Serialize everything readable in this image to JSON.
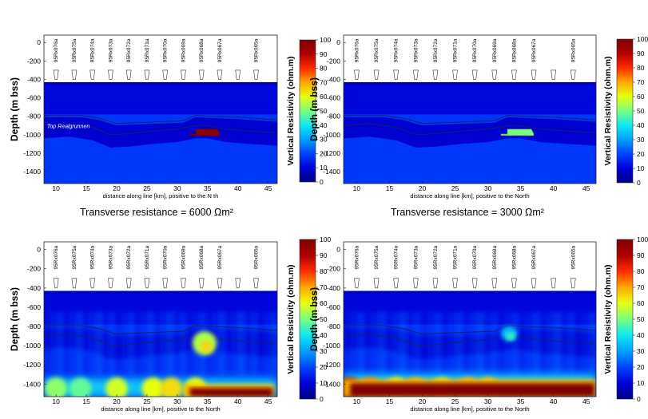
{
  "colors": {
    "background": "#ffffff",
    "air": "#ffffff",
    "rock": "#3a5fbf",
    "deep": "#2233a0",
    "shallow_band": "#2e4fb4"
  },
  "colormap": [
    "#000080",
    "#0000d8",
    "#0044ff",
    "#00a0ff",
    "#10e8ef",
    "#78ff7f",
    "#e8ff10",
    "#ffa800",
    "#ff2c00",
    "#b00000",
    "#800000"
  ],
  "captions": [
    "Transverse resistance = 6000 Ωm²",
    "Transverse resistance = 3000 Ωm²"
  ],
  "chart_data": [
    {
      "type": "heatmap",
      "panel": "top-left",
      "ylabel": "Depth (m bss)",
      "xlabel": "distance along line [km], positive to the N   th",
      "x_ticks": [
        "10",
        "15",
        "20",
        "25",
        "30",
        "35",
        "40",
        "45"
      ],
      "y_ticks": [
        "0",
        "-200",
        "-400",
        "-600",
        "-800",
        "-1000",
        "-1200",
        "-1400"
      ],
      "xlim": [
        8,
        46.5
      ],
      "ylim": [
        -1530,
        80
      ],
      "stations": [
        "95Rx076a",
        "95Rx075a",
        "95Rx074a",
        "95Rx073a",
        "95Rx072a",
        "95Rx071a",
        "95Rx070a",
        "95Rx069a",
        "95Rx068a",
        "95Rx067a",
        "",
        "95Rx065a"
      ],
      "colorbar": {
        "label": "Vertical Resistivity (ohm.m)",
        "ticks": [
          "100",
          "90",
          "80",
          "70",
          "60",
          "50",
          "40",
          "30",
          "20",
          "10",
          "0"
        ],
        "range": [
          0,
          100
        ]
      },
      "annotation": "Top Realgrunnen",
      "background_resistivity": 18,
      "seafloor_resistivity": 7,
      "highlight": {
        "x": [
          32,
          37
        ],
        "depth": [
          -940,
          -1010
        ],
        "resistivity": 98
      }
    },
    {
      "type": "heatmap",
      "panel": "top-right",
      "ylabel": "Depth (m bss)",
      "xlabel": "distance along line [km], positive to the North",
      "x_ticks": [
        "10",
        "15",
        "20",
        "25",
        "30",
        "35",
        "40",
        "45"
      ],
      "y_ticks": [
        "0",
        "-200",
        "-400",
        "-600",
        "-800",
        "-1000",
        "-1200",
        "-1400"
      ],
      "xlim": [
        8,
        46.5
      ],
      "ylim": [
        -1530,
        80
      ],
      "stations": [
        "95Rx076a",
        "95Rx075a",
        "95Rx074a",
        "95Rx073a",
        "95Rx072a",
        "95Rx071a",
        "95Rx070a",
        "95Rx069a",
        "95Rx068a",
        "95Rx067a",
        "",
        "95Rx065a"
      ],
      "colorbar": {
        "label": "Vertical Resistivity (ohm.m)",
        "ticks": [
          "100",
          "90",
          "80",
          "70",
          "60",
          "50",
          "40",
          "30",
          "20",
          "10",
          "0"
        ],
        "range": [
          0,
          100
        ]
      },
      "background_resistivity": 18,
      "seafloor_resistivity": 7,
      "highlight": {
        "x": [
          32,
          37
        ],
        "depth": [
          -940,
          -1010
        ],
        "resistivity": 50
      }
    },
    {
      "type": "heatmap",
      "panel": "bottom-left",
      "ylabel": "Depth (m bss)",
      "xlabel": "distance along line [km], positive to the North",
      "x_ticks": [
        "10",
        "15",
        "20",
        "25",
        "30",
        "35",
        "40",
        "45"
      ],
      "y_ticks": [
        "0",
        "-200",
        "-400",
        "-600",
        "-800",
        "-1000",
        "-1200",
        "-1400"
      ],
      "xlim": [
        8,
        46.5
      ],
      "ylim": [
        -1530,
        80
      ],
      "stations": [
        "95Rx076a",
        "95Rx075a",
        "95Rx074a",
        "95Rx073a",
        "95Rx072a",
        "95Rx071a",
        "95Rx070a",
        "95Rx069a",
        "95Rx068a",
        "95Rx067a",
        "",
        "95Rx065a"
      ],
      "colorbar": {
        "label": "Vertical Resistivity (ohm.m)",
        "ticks": [
          "100",
          "90",
          "80",
          "70",
          "60",
          "50",
          "40",
          "30",
          "20",
          "10",
          "0"
        ],
        "range": [
          0,
          100
        ]
      },
      "background_resistivity": 18,
      "seafloor_resistivity": 7,
      "anomaly": {
        "x": [
          32.5,
          36.5
        ],
        "depth": [
          -850,
          -1100
        ],
        "resistivity": 55
      },
      "deep_zone": {
        "x": [
          31,
          46
        ],
        "depth": [
          -1400,
          -1500
        ],
        "resistivity": 100
      }
    },
    {
      "type": "heatmap",
      "panel": "bottom-right",
      "ylabel": "Depth (m bss)",
      "xlabel": "distance along line [km], positive to the North",
      "x_ticks": [
        "10",
        "15",
        "20",
        "25",
        "30",
        "35",
        "40",
        "45"
      ],
      "y_ticks": [
        "0",
        "-200",
        "-400",
        "-600",
        "-800",
        "-1000",
        "-1200",
        "-1400"
      ],
      "xlim": [
        8,
        46.5
      ],
      "ylim": [
        -1530,
        80
      ],
      "stations": [
        "95Rx076a",
        "95Rx075a",
        "95Rx074a",
        "95Rx073a",
        "95Rx072a",
        "95Rx071a",
        "95Rx070a",
        "95Rx069a",
        "95Rx068a",
        "95Rx067a",
        "",
        "95Rx065a"
      ],
      "colorbar": {
        "label": "Vertical Resistivity (ohm.m)",
        "ticks": [
          "100",
          "90",
          "80",
          "70",
          "60",
          "50",
          "40",
          "30",
          "20",
          "10",
          "0"
        ],
        "range": [
          0,
          100
        ]
      },
      "background_resistivity": 18,
      "seafloor_resistivity": 7,
      "anomaly": {
        "x": [
          32,
          34.5
        ],
        "depth": [
          -800,
          -950
        ],
        "resistivity": 35
      },
      "deep_zone": {
        "x": [
          8,
          46.5
        ],
        "depth": [
          -1350,
          -1500
        ],
        "resistivity": 100
      }
    }
  ]
}
